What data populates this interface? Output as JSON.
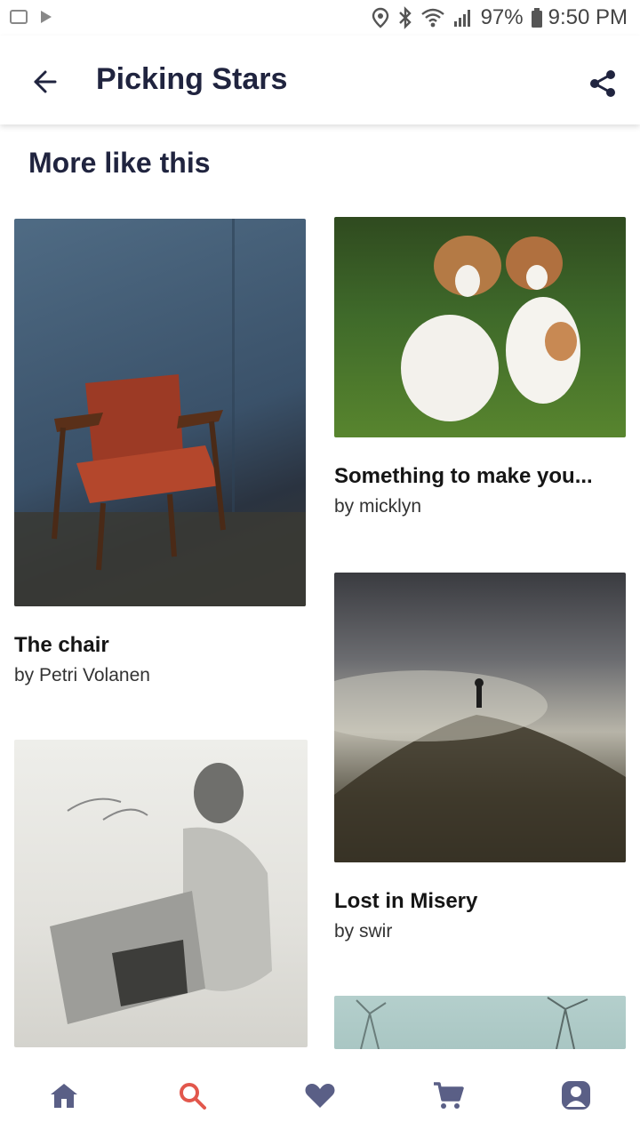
{
  "status_bar": {
    "battery_percent": "97%",
    "time": "9:50 PM"
  },
  "app_bar": {
    "title": "Picking Stars",
    "back_icon": "arrow-left-icon",
    "share_icon": "share-icon"
  },
  "section": {
    "title": "More like this"
  },
  "cards": [
    {
      "title": "The chair",
      "author": "by Petri Volanen"
    },
    {
      "title": "Something to make you...",
      "author": "by micklyn"
    },
    {
      "title": "Lost in Misery",
      "author": "by swir"
    },
    {
      "title": "",
      "author": ""
    },
    {
      "title": "",
      "author": ""
    }
  ],
  "bottom_nav": {
    "items": [
      {
        "icon": "home-icon"
      },
      {
        "icon": "search-icon"
      },
      {
        "icon": "heart-icon"
      },
      {
        "icon": "cart-icon"
      },
      {
        "icon": "profile-icon"
      }
    ],
    "colors": {
      "default": "#5a5f86",
      "active": "#e2574c"
    }
  }
}
